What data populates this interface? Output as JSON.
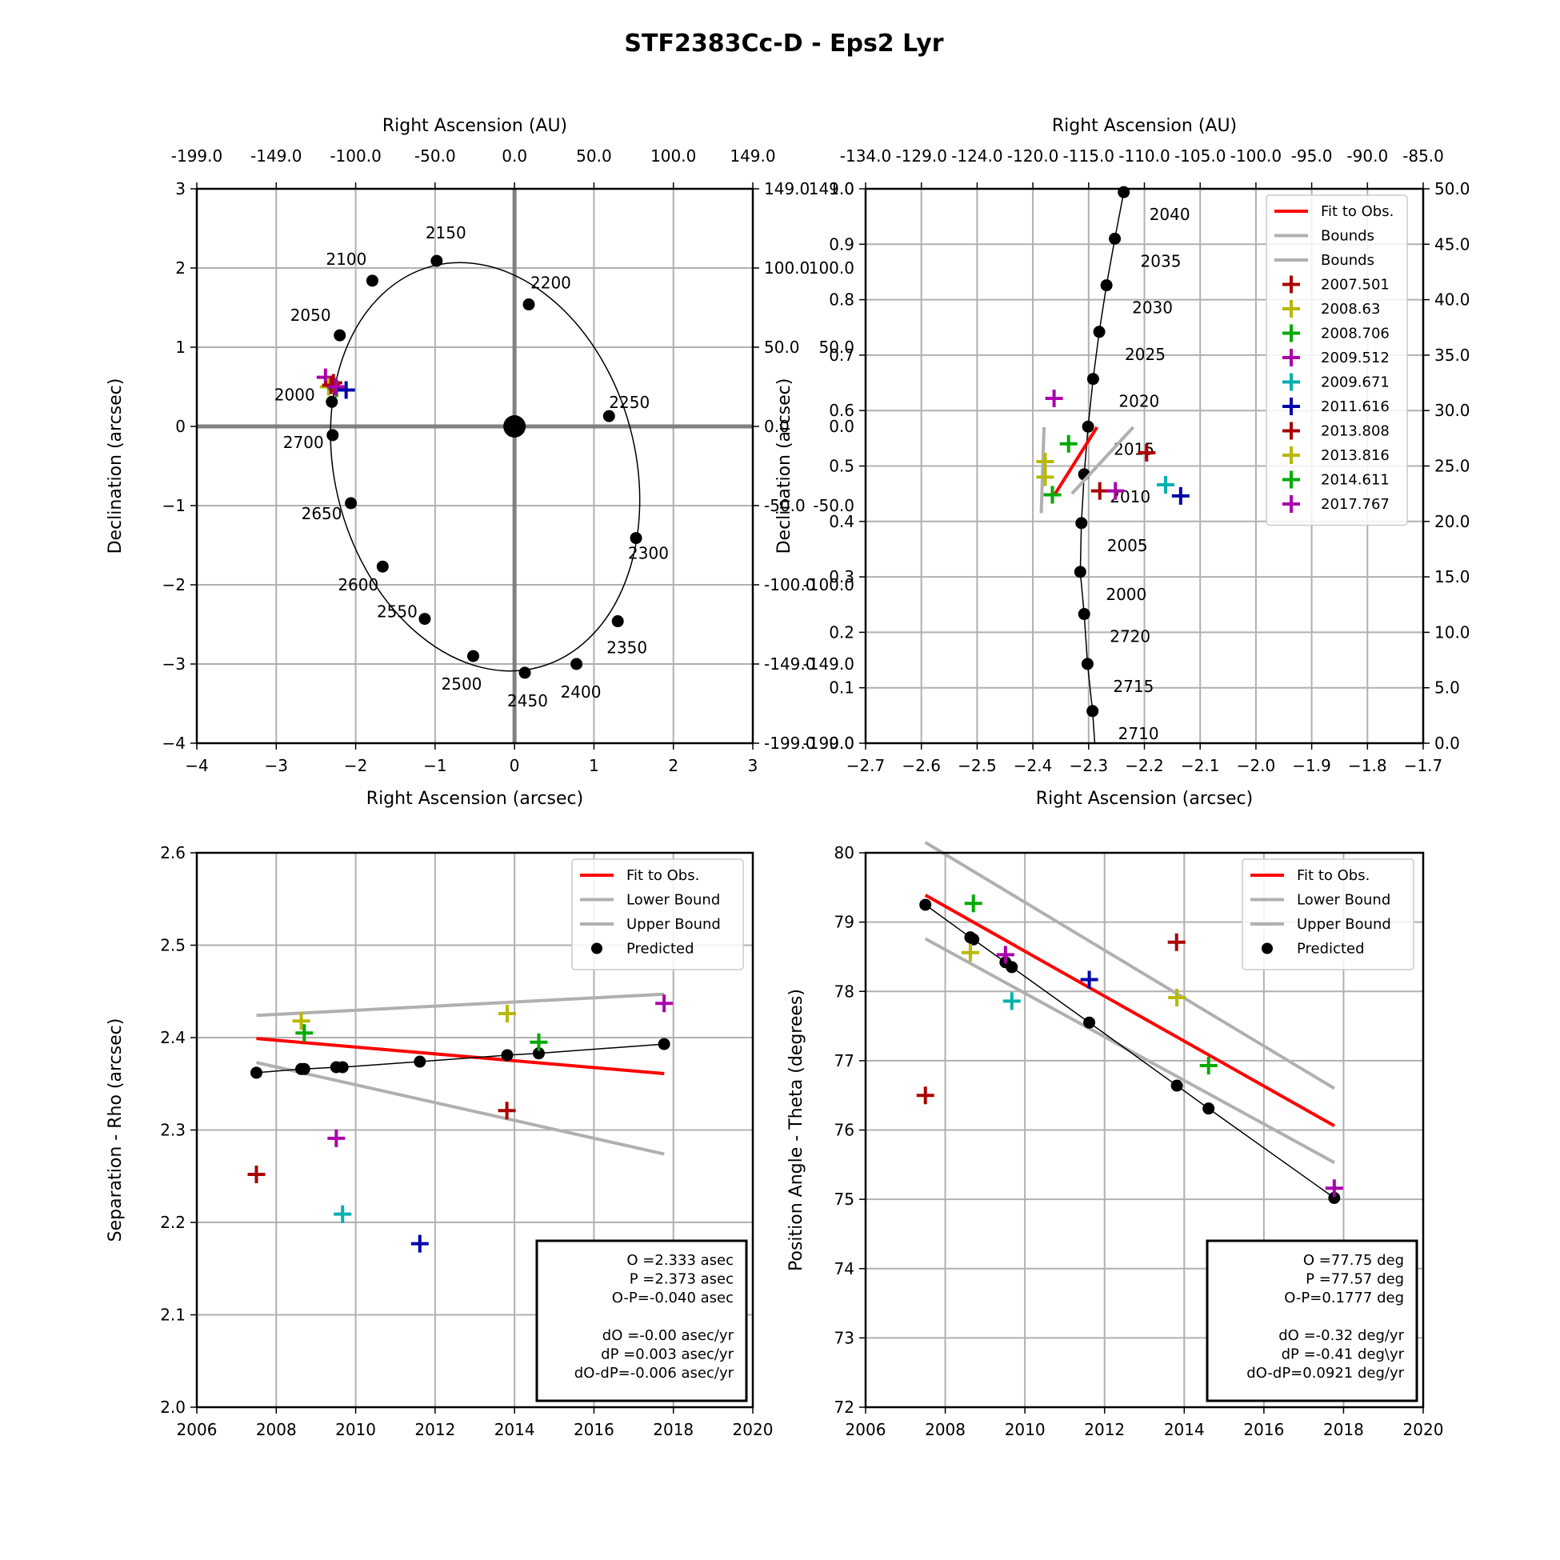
{
  "title": "STF2383Cc-D - Eps2 Lyr",
  "colors": {
    "grid": "#b0b0b0",
    "fit": "#ff0000",
    "bounds": "#b0b0b0",
    "axes_center": "#808080",
    "obs": [
      "#aa0000",
      "#b8b800",
      "#00aa00",
      "#aa00aa",
      "#00b0b0",
      "#0000aa",
      "#aa0000",
      "#b8b800",
      "#00aa00",
      "#aa00aa"
    ]
  },
  "chart_data": [
    {
      "type": "scatter",
      "name": "orbit-overview",
      "xlabel": "Right Ascension (arcsec)",
      "ylabel": "Declination (arcsec)",
      "top_xlabel": "Right Ascension (AU)",
      "xlim": [
        -4,
        3
      ],
      "ylim": [
        -4,
        3
      ],
      "xticks": [
        "−4",
        "−3",
        "−2",
        "−1",
        "0",
        "1",
        "2",
        "3"
      ],
      "yticks": [
        "−4",
        "−3",
        "−2",
        "−1",
        "0",
        "1",
        "2",
        "3"
      ],
      "top_ticks": [
        "-199.0",
        "-149.0",
        "-100.0",
        "-50.0",
        "0.0",
        "50.0",
        "100.0",
        "149.0"
      ],
      "right_ticks": [
        "-199.0",
        "-149.0",
        "-100.0",
        "-50.0",
        "0.0",
        "50.0",
        "100.0",
        "149.0"
      ],
      "orbit_points": [
        {
          "label": "2000",
          "x": -2.3,
          "y": 0.31
        },
        {
          "label": "2050",
          "x": -2.2,
          "y": 1.15
        },
        {
          "label": "2100",
          "x": -1.79,
          "y": 1.84
        },
        {
          "label": "2150",
          "x": -0.98,
          "y": 2.09
        },
        {
          "label": "2200",
          "x": 0.18,
          "y": 1.54
        },
        {
          "label": "2250",
          "x": 1.19,
          "y": 0.13
        },
        {
          "label": "2300",
          "x": 1.53,
          "y": -1.41
        },
        {
          "label": "2350",
          "x": 1.3,
          "y": -2.46
        },
        {
          "label": "2400",
          "x": 0.78,
          "y": -3.0
        },
        {
          "label": "2450",
          "x": 0.13,
          "y": -3.11
        },
        {
          "label": "2500",
          "x": -0.52,
          "y": -2.9
        },
        {
          "label": "2550",
          "x": -1.13,
          "y": -2.43
        },
        {
          "label": "2600",
          "x": -1.66,
          "y": -1.77
        },
        {
          "label": "2650",
          "x": -2.06,
          "y": -0.97
        },
        {
          "label": "2700",
          "x": -2.29,
          "y": -0.11
        }
      ],
      "ellipse": {
        "cx": -0.37,
        "cy": -0.51,
        "rx": 1.89,
        "ry": 2.62,
        "rotation_deg": -15
      },
      "primary": {
        "x": 0,
        "y": 0
      }
    },
    {
      "type": "scatter",
      "name": "orbit-zoom",
      "xlabel": "Right Ascension (arcsec)",
      "ylabel": "Declination (arcsec)",
      "top_xlabel": "Right Ascension (AU)",
      "xlim": [
        -2.7,
        -1.7
      ],
      "ylim": [
        0,
        1.0
      ],
      "xticks": [
        "−2.7",
        "−2.6",
        "−2.5",
        "−2.4",
        "−2.3",
        "−2.2",
        "−2.1",
        "−2.0",
        "−1.9",
        "−1.8",
        "−1.7"
      ],
      "yticks": [
        "0.0",
        "0.1",
        "0.2",
        "0.3",
        "0.4",
        "0.5",
        "0.6",
        "0.7",
        "0.8",
        "0.9",
        "1.0"
      ],
      "top_ticks": [
        "-134.0",
        "-129.0",
        "-124.0",
        "-120.0",
        "-115.0",
        "-110.0",
        "-105.0",
        "-100.0",
        "-95.0",
        "-90.0",
        "-85.0"
      ],
      "right_ticks": [
        "0.0",
        "5.0",
        "10.0",
        "15.0",
        "20.0",
        "25.0",
        "30.0",
        "35.0",
        "40.0",
        "45.0",
        "50.0"
      ],
      "left_overlap_ticks": [
        "-199.0",
        "-149.0",
        "-100.0",
        "-50.0",
        "0.0",
        "50.0",
        "100.0",
        "149.0"
      ],
      "orbit_points": [
        {
          "label": "2040",
          "x": -2.237,
          "y": 0.994
        },
        {
          "label": "2035",
          "x": -2.253,
          "y": 0.91
        },
        {
          "label": "2030",
          "x": -2.268,
          "y": 0.826
        },
        {
          "label": "2025",
          "x": -2.281,
          "y": 0.742
        },
        {
          "label": "2020",
          "x": -2.292,
          "y": 0.657
        },
        {
          "label": "2015",
          "x": -2.301,
          "y": 0.571
        },
        {
          "label": "2010",
          "x": -2.308,
          "y": 0.485
        },
        {
          "label": "2005",
          "x": -2.313,
          "y": 0.397
        },
        {
          "label": "2000",
          "x": -2.315,
          "y": 0.309
        },
        {
          "label": "2720",
          "x": -2.308,
          "y": 0.233
        },
        {
          "label": "2715",
          "x": -2.302,
          "y": 0.143
        },
        {
          "label": "2710",
          "x": -2.293,
          "y": 0.058
        }
      ],
      "fit_line": [
        [
          -2.36,
          0.45
        ],
        [
          -2.285,
          0.57
        ]
      ],
      "bounds_lines": [
        [
          [
            -2.385,
            0.415
          ],
          [
            -2.38,
            0.57
          ]
        ],
        [
          [
            -2.33,
            0.45
          ],
          [
            -2.22,
            0.57
          ]
        ]
      ],
      "observations": [
        {
          "label": "2007.501",
          "x": -2.196,
          "y": 0.524
        },
        {
          "label": "2008.63",
          "x": -2.378,
          "y": 0.508
        },
        {
          "label": "2008.706",
          "x": -2.336,
          "y": 0.54
        },
        {
          "label": "2009.512",
          "x": -2.362,
          "y": 0.622
        },
        {
          "label": "2009.671",
          "x": -2.162,
          "y": 0.466
        },
        {
          "label": "2011.616",
          "x": -2.135,
          "y": 0.446
        },
        {
          "label": "2013.808",
          "x": -2.28,
          "y": 0.455
        },
        {
          "label": "2013.816",
          "x": -2.378,
          "y": 0.48
        },
        {
          "label": "2014.611",
          "x": -2.365,
          "y": 0.448
        },
        {
          "label": "2017.767",
          "x": -2.252,
          "y": 0.455
        }
      ],
      "legend": [
        "Fit to Obs.",
        "Bounds",
        "Bounds",
        "2007.501",
        "2008.63",
        "2008.706",
        "2009.512",
        "2009.671",
        "2011.616",
        "2013.808",
        "2013.816",
        "2014.611",
        "2017.767"
      ]
    },
    {
      "type": "scatter",
      "name": "separation",
      "xlabel": "",
      "ylabel": "Separation - Rho (arcsec)",
      "xlim": [
        2006,
        2020
      ],
      "ylim": [
        2.0,
        2.6
      ],
      "xticks": [
        "2006",
        "2008",
        "2010",
        "2012",
        "2014",
        "2016",
        "2018",
        "2020"
      ],
      "yticks": [
        "2.0",
        "2.1",
        "2.2",
        "2.3",
        "2.4",
        "2.5",
        "2.6"
      ],
      "predicted": [
        [
          2007.501,
          2.362
        ],
        [
          2008.63,
          2.366
        ],
        [
          2008.706,
          2.366
        ],
        [
          2009.512,
          2.368
        ],
        [
          2009.671,
          2.368
        ],
        [
          2011.616,
          2.374
        ],
        [
          2013.816,
          2.381
        ],
        [
          2014.611,
          2.383
        ],
        [
          2017.767,
          2.393
        ]
      ],
      "observed": [
        [
          2007.501,
          2.252
        ],
        [
          2008.63,
          2.418
        ],
        [
          2008.706,
          2.405
        ],
        [
          2009.512,
          2.291
        ],
        [
          2009.671,
          2.209
        ],
        [
          2011.616,
          2.177
        ],
        [
          2013.808,
          2.321
        ],
        [
          2013.816,
          2.426
        ],
        [
          2014.611,
          2.395
        ],
        [
          2017.767,
          2.437
        ]
      ],
      "fit": [
        [
          2007.5,
          2.399
        ],
        [
          2017.77,
          2.361
        ]
      ],
      "lower": [
        [
          2007.5,
          2.373
        ],
        [
          2017.77,
          2.274
        ]
      ],
      "upper": [
        [
          2007.5,
          2.424
        ],
        [
          2017.77,
          2.447
        ]
      ],
      "legend": [
        "Fit to Obs.",
        "Lower Bound",
        "Upper Bound",
        "Predicted"
      ],
      "stats": [
        "O  =2.333 asec",
        "P  =2.373 asec",
        "O-P=-0.040 asec",
        "",
        "dO  =-0.00 asec/yr",
        "dP  =0.003 asec/yr",
        "dO-dP=-0.006 asec/yr"
      ]
    },
    {
      "type": "scatter",
      "name": "position-angle",
      "xlabel": "",
      "ylabel": "Position Angle - Theta (degrees)",
      "xlim": [
        2006,
        2020
      ],
      "ylim": [
        72,
        80
      ],
      "xticks": [
        "2006",
        "2008",
        "2010",
        "2012",
        "2014",
        "2016",
        "2018",
        "2020"
      ],
      "yticks": [
        "72",
        "73",
        "74",
        "75",
        "76",
        "77",
        "78",
        "79",
        "80"
      ],
      "predicted": [
        [
          2007.501,
          79.25
        ],
        [
          2008.63,
          78.78
        ],
        [
          2008.706,
          78.75
        ],
        [
          2009.512,
          78.42
        ],
        [
          2009.671,
          78.35
        ],
        [
          2011.616,
          77.55
        ],
        [
          2013.816,
          76.64
        ],
        [
          2014.611,
          76.31
        ],
        [
          2017.767,
          75.02
        ]
      ],
      "observed": [
        [
          2007.501,
          76.5
        ],
        [
          2008.63,
          78.56
        ],
        [
          2008.706,
          79.27
        ],
        [
          2009.512,
          78.53
        ],
        [
          2009.671,
          77.86
        ],
        [
          2011.616,
          78.17
        ],
        [
          2013.808,
          78.71
        ],
        [
          2013.816,
          77.91
        ],
        [
          2014.611,
          76.93
        ],
        [
          2017.767,
          75.16
        ]
      ],
      "fit": [
        [
          2007.5,
          79.39
        ],
        [
          2017.77,
          76.06
        ]
      ],
      "lower": [
        [
          2007.5,
          78.76
        ],
        [
          2017.77,
          75.53
        ]
      ],
      "upper": [
        [
          2007.5,
          80.15
        ],
        [
          2017.77,
          76.6
        ]
      ],
      "legend": [
        "Fit to Obs.",
        "Lower Bound",
        "Upper Bound",
        "Predicted"
      ],
      "stats": [
        "O  =77.75 deg",
        "P  =77.57 deg",
        "O-P=0.1777 deg",
        "",
        "dO  =-0.32 deg/yr",
        "dP  =-0.41 deg\\yr",
        "dO-dP=0.0921 deg/yr"
      ]
    }
  ]
}
